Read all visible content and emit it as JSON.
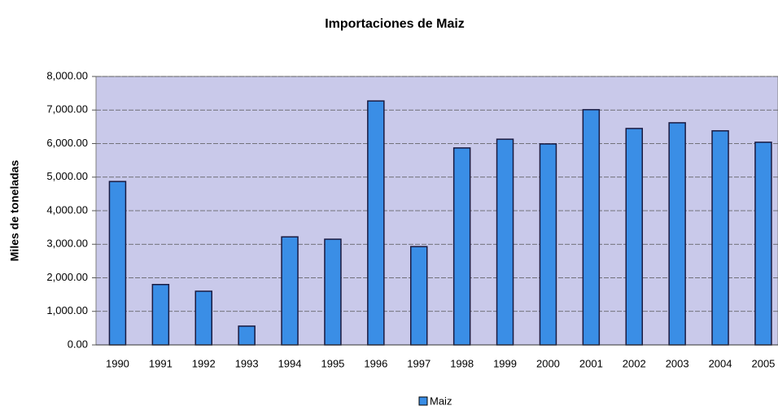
{
  "chart_data": {
    "type": "bar",
    "title": "Importaciones de Maiz",
    "y_label": "Miles de toneladas",
    "categories": [
      "1990",
      "1991",
      "1992",
      "1993",
      "1994",
      "1995",
      "1996",
      "1997",
      "1998",
      "1999",
      "2000",
      "2001",
      "2002",
      "2003",
      "2004",
      "2005"
    ],
    "series": [
      {
        "name": "Maiz",
        "color": "#3a8ee6",
        "values": [
          4870,
          1800,
          1600,
          560,
          3220,
          3150,
          7270,
          2930,
          5870,
          6130,
          5990,
          7010,
          6450,
          6620,
          6380,
          6040
        ]
      }
    ],
    "ylim": [
      0,
      8000
    ],
    "yticks": [
      {
        "value": 0,
        "label": "0.00"
      },
      {
        "value": 1000,
        "label": "1,000.00"
      },
      {
        "value": 2000,
        "label": "2,000.00"
      },
      {
        "value": 3000,
        "label": "3,000.00"
      },
      {
        "value": 4000,
        "label": "4,000.00"
      },
      {
        "value": 5000,
        "label": "5,000.00"
      },
      {
        "value": 6000,
        "label": "6,000.00"
      },
      {
        "value": 7000,
        "label": "7,000.00"
      },
      {
        "value": 8000,
        "label": "8,000.00"
      }
    ],
    "grid": true,
    "legend": "bottom"
  }
}
